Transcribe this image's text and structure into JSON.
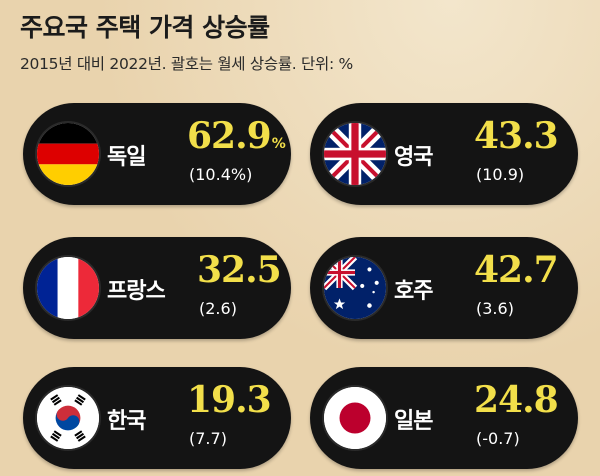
{
  "header": {
    "title": "주요국 주택 가격 상승률",
    "subtitle": "2015년 대비 2022년. 괄호는 월세 상승률. 단위: %"
  },
  "chart_data": {
    "type": "table",
    "columns": [
      "country",
      "house_price_growth",
      "monthly_rent_growth"
    ],
    "rows": [
      {
        "country": "독일",
        "flag": "germany-flag",
        "value": "62.9",
        "unit": "%",
        "monthly": "(10.4%)"
      },
      {
        "country": "영국",
        "flag": "uk-flag",
        "value": "43.3",
        "unit": "",
        "monthly": "(10.9)"
      },
      {
        "country": "프랑스",
        "flag": "france-flag",
        "value": "32.5",
        "unit": "",
        "monthly": "(2.6)"
      },
      {
        "country": "호주",
        "flag": "australia-flag",
        "value": "42.7",
        "unit": "",
        "monthly": "(3.6)"
      },
      {
        "country": "한국",
        "flag": "korea-flag",
        "value": "19.3",
        "unit": "",
        "monthly": "(7.7)"
      },
      {
        "country": "일본",
        "flag": "japan-flag",
        "value": "24.8",
        "unit": "",
        "monthly": "(-0.7)"
      }
    ]
  },
  "colors": {
    "background": "#e9d3ad",
    "card": "#141414",
    "value": "#f2df4a"
  }
}
